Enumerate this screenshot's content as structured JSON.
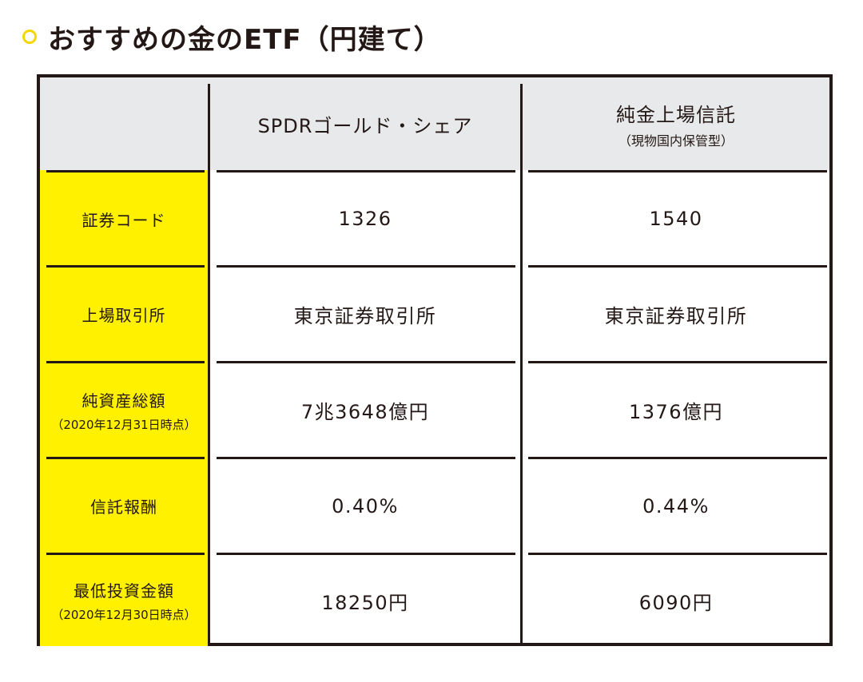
{
  "title": "おすすめの金のETF（円建て）",
  "table": {
    "columns": [
      {
        "name": "SPDRゴールド・シェア",
        "sub": ""
      },
      {
        "name": "純金上場信託",
        "sub": "（現物国内保管型）"
      }
    ],
    "rows": [
      {
        "label": "証券コード",
        "sub": "",
        "values": [
          "1326",
          "1540"
        ]
      },
      {
        "label": "上場取引所",
        "sub": "",
        "values": [
          "東京証券取引所",
          "東京証券取引所"
        ]
      },
      {
        "label": "純資産総額",
        "sub": "（2020年12月31日時点）",
        "values": [
          "7兆3648億円",
          "1376億円"
        ]
      },
      {
        "label": "信託報酬",
        "sub": "",
        "values": [
          "0.40%",
          "0.44%"
        ]
      },
      {
        "label": "最低投資金額",
        "sub": "（2020年12月30日時点）",
        "values": [
          "18250円",
          "6090円"
        ]
      }
    ]
  },
  "colors": {
    "label_column": "#fff100",
    "header_background": "#e8e9ea",
    "bullet": "#f2d800",
    "border": "#231815"
  }
}
